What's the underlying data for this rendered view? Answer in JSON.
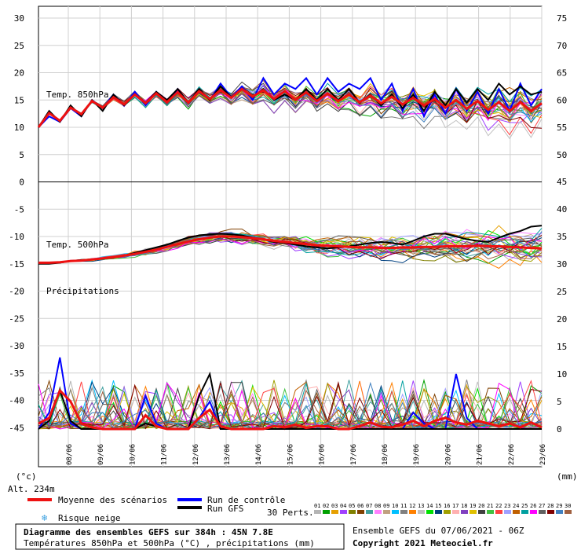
{
  "chart_data": {
    "type": "line",
    "left_axis": {
      "labels": [
        "30",
        "25",
        "20",
        "15",
        "10",
        "5",
        "0",
        "-5",
        "-10",
        "-15",
        "-20",
        "-25",
        "-30",
        "-35",
        "-40",
        "-45"
      ],
      "unit": "(°c)"
    },
    "right_axis_upper": {
      "labels": [
        "75",
        "70",
        "65",
        "60",
        "55",
        "50"
      ]
    },
    "right_axis_lower": {
      "labels": [
        "45",
        "40",
        "35",
        "30",
        "25",
        "20",
        "15",
        "10",
        "5",
        "0"
      ],
      "unit": "(mm)"
    },
    "x_dates": [
      "08/06",
      "09/06",
      "10/06",
      "11/06",
      "12/06",
      "13/06",
      "14/06",
      "15/06",
      "16/06",
      "17/06",
      "18/06",
      "19/06",
      "20/06",
      "21/06",
      "22/06",
      "23/06"
    ],
    "panels": [
      {
        "label": "Temp. 850hPa"
      },
      {
        "label": "Temp. 500hPa"
      },
      {
        "label": "Précipitations"
      }
    ],
    "altitude": "Alt. 234m",
    "mean_series": {
      "name": "Moyenne des scénarios",
      "color": "#ee1111",
      "t850": [
        10,
        12.6,
        11.2,
        13.6,
        12.4,
        14.8,
        13.6,
        15.5,
        14.2,
        16,
        14.4,
        16.2,
        14.6,
        16.4,
        14.5,
        16.6,
        15.2,
        16.8,
        15.4,
        17,
        15.6,
        16.8,
        15.2,
        16.6,
        15,
        16.4,
        14.8,
        16.2,
        14.8,
        16,
        14.6,
        15.8,
        14.4,
        15.6,
        14.2,
        15.4,
        14,
        15.2,
        13.6,
        15,
        13.4,
        14.8,
        13.2,
        14.6,
        13,
        14.6,
        13,
        14.4
      ],
      "t500": [
        -14.8,
        -14.8,
        -14.7,
        -14.5,
        -14.4,
        -14.2,
        -14.0,
        -13.8,
        -13.5,
        -13.2,
        -12.8,
        -12.4,
        -11.9,
        -11.4,
        -10.9,
        -10.5,
        -10.2,
        -10.0,
        -10.0,
        -10.1,
        -10.3,
        -10.5,
        -10.8,
        -11.0,
        -11.2,
        -11.4,
        -11.6,
        -11.7,
        -11.8,
        -11.9,
        -12.0,
        -12.0,
        -12.1,
        -12.1,
        -12.0,
        -12.0,
        -11.9,
        -11.9,
        -11.8,
        -11.8,
        -11.8,
        -11.7,
        -11.8,
        -11.8,
        -11.9,
        -12.0,
        -12.1,
        -12.2
      ],
      "precip": [
        1,
        2,
        7,
        5,
        1,
        0.3,
        0,
        0,
        0,
        0,
        2.5,
        0.5,
        0,
        0,
        0,
        2,
        3.5,
        0.5,
        0,
        0,
        0,
        0,
        0.5,
        0.3,
        0.8,
        0.2,
        0.5,
        0.5,
        0,
        0,
        0.5,
        1.2,
        0.4,
        0.3,
        0.8,
        1.5,
        0.5,
        1.5,
        2,
        1.2,
        0.8,
        1.5,
        1.0,
        0.5,
        1,
        0.3,
        1.2,
        0.3
      ]
    },
    "control_series": {
      "name": "Run de contrôle",
      "color": "#0000ff",
      "t850": [
        10,
        12,
        11,
        13.5,
        12,
        15,
        13.5,
        16,
        14,
        16.5,
        14,
        16.5,
        14.5,
        17,
        14.5,
        17,
        15,
        18,
        15.5,
        17.5,
        15,
        19,
        16,
        18,
        17,
        19,
        16,
        19,
        16.5,
        18,
        17,
        19,
        15,
        18,
        13,
        17,
        12,
        16,
        12.5,
        17,
        13,
        16.5,
        12.5,
        17,
        13,
        18,
        14,
        17
      ],
      "precip": [
        0,
        3,
        13,
        1,
        0,
        0,
        0,
        0,
        0,
        0,
        6,
        1,
        0,
        0,
        0,
        2,
        5,
        0,
        0,
        0,
        0,
        0,
        0,
        0,
        0,
        0,
        0,
        0,
        0,
        0,
        0,
        0,
        0,
        0,
        0,
        3,
        1,
        0,
        0,
        10,
        2,
        0,
        0,
        0,
        0,
        0,
        0,
        0
      ]
    },
    "gfs_series": {
      "name": "Run GFS",
      "color": "#000000",
      "t850": [
        10,
        13,
        11,
        14,
        12,
        15,
        13,
        16,
        14,
        16,
        14.5,
        16.5,
        15,
        17,
        14.5,
        17,
        15,
        17.5,
        15.5,
        17,
        15.5,
        17,
        15,
        16,
        15,
        17,
        15,
        17,
        15,
        17,
        14.5,
        16,
        14,
        16,
        13.5,
        16,
        13,
        16.5,
        14,
        17,
        14.5,
        17,
        15,
        18,
        16,
        17.5,
        16,
        16.5
      ],
      "t500": [
        -15,
        -15,
        -14.8,
        -14.5,
        -14.3,
        -14.2,
        -14,
        -13.8,
        -13.5,
        -13,
        -12.5,
        -12,
        -11.5,
        -10.8,
        -10.2,
        -9.8,
        -9.6,
        -9.5,
        -9.6,
        -9.8,
        -10.2,
        -10.5,
        -11,
        -11.2,
        -11.5,
        -11.8,
        -12,
        -12.2,
        -12,
        -11.8,
        -11.5,
        -11.2,
        -11,
        -11.2,
        -11.5,
        -10.8,
        -10,
        -9.5,
        -9.5,
        -10,
        -10.5,
        -10.8,
        -11,
        -10.2,
        -9.5,
        -9,
        -8.2,
        -8
      ],
      "precip": [
        0,
        1.5,
        7,
        1.5,
        0,
        0,
        0,
        0,
        0,
        0,
        1,
        0.5,
        0,
        0,
        0,
        6,
        10,
        0,
        0,
        0,
        0,
        0,
        0,
        0,
        0,
        0,
        0,
        0,
        0,
        0,
        0,
        0,
        0,
        0,
        0,
        0,
        0,
        0,
        0,
        0,
        0,
        0,
        0,
        0,
        0,
        0,
        0,
        0
      ]
    },
    "perturbation_count_label": "30 Perts.",
    "perturbation_numbers": [
      "01",
      "02",
      "03",
      "04",
      "05",
      "06",
      "07",
      "08",
      "09",
      "10",
      "11",
      "12",
      "13",
      "14",
      "15",
      "16",
      "17",
      "18",
      "19",
      "20",
      "21",
      "22",
      "23",
      "24",
      "25",
      "26",
      "27",
      "28",
      "29",
      "30"
    ],
    "perturbation_colors": [
      "#b4b4b4",
      "#00a000",
      "#e6a000",
      "#a040ff",
      "#808000",
      "#804000",
      "#40a0a0",
      "#ff80ff",
      "#c0a080",
      "#00c0ff",
      "#808080",
      "#ff8000",
      "#c0c0c0",
      "#00e000",
      "#004080",
      "#a0a000",
      "#ffb0b0",
      "#8040c0",
      "#e0c000",
      "#404040",
      "#40c040",
      "#ff4040",
      "#a0a0ff",
      "#c06000",
      "#00a0a0",
      "#ff00ff",
      "#606060",
      "#800000",
      "#4080c0",
      "#a06040"
    ],
    "risk_snow": "Risque neige",
    "info_title": "Diagramme des ensembles GEFS sur 384h : 45N 7.8E",
    "info_subtitle": "Températures 850hPa et 500hPa (°C) , précipitations (mm)",
    "run_info": "Ensemble GEFS du 07/06/2021 - 06Z",
    "copyright": "Copyright 2021 Meteociel.fr"
  }
}
